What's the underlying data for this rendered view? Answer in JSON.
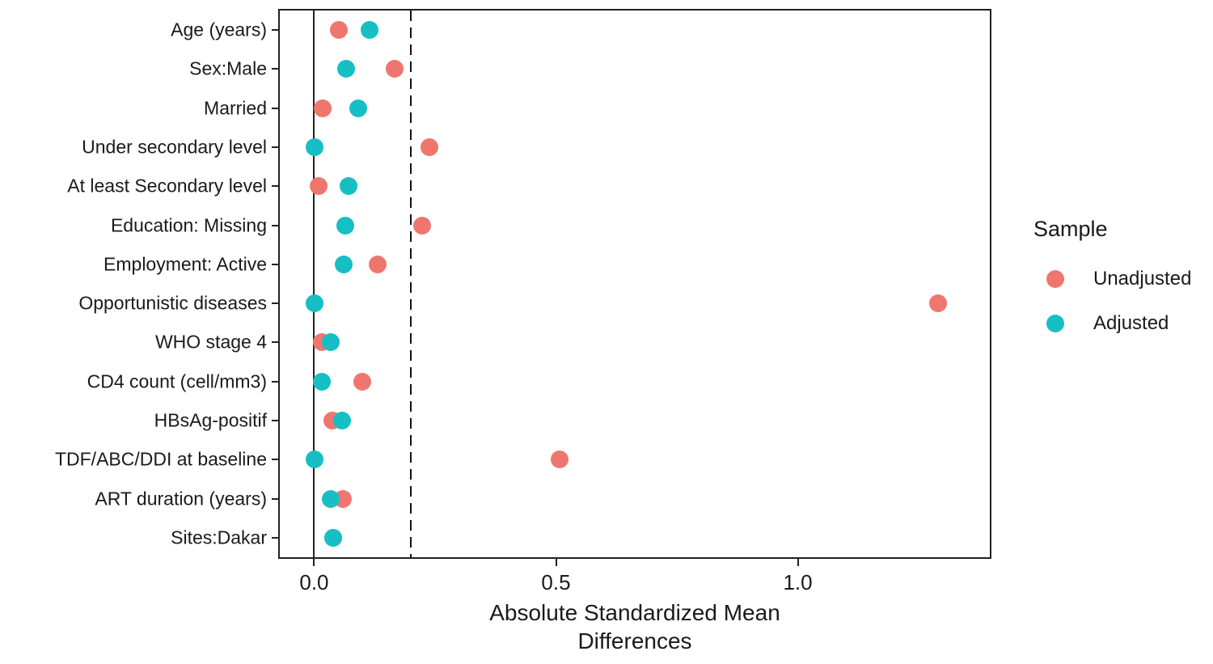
{
  "chart_data": {
    "type": "scatter",
    "subtype": "love-plot-covariate-balance",
    "title": "",
    "xlabel_line1": "Absolute Standardized Mean",
    "xlabel_line2": "Differences",
    "categories": [
      "Age (years)",
      "Sex:Male",
      "Married",
      "Under secondary level",
      "At least Secondary level",
      "Education: Missing",
      "Employment: Active",
      "Opportunistic diseases",
      "WHO stage 4",
      "CD4 count (cell/mm3)",
      "HBsAg-positif",
      "TDF/ABC/DDI at baseline",
      "ART duration (years)",
      "Sites:Dakar"
    ],
    "series": [
      {
        "name": "Unadjusted",
        "color": "#EF766F",
        "values": [
          0.051,
          0.166,
          0.018,
          0.238,
          0.01,
          0.224,
          0.132,
          1.29,
          0.016,
          0.099,
          0.037,
          0.507,
          0.06,
          0.04
        ]
      },
      {
        "name": "Adjusted",
        "color": "#16BFC3",
        "values": [
          0.114,
          0.066,
          0.092,
          0.001,
          0.071,
          0.065,
          0.061,
          0.001,
          0.034,
          0.016,
          0.058,
          0.001,
          0.035,
          0.04
        ]
      }
    ],
    "x_ticks": [
      {
        "value": 0.0,
        "label": "0.0"
      },
      {
        "value": 0.5,
        "label": "0.5"
      },
      {
        "value": 1.0,
        "label": "1.0"
      }
    ],
    "xlim": [
      -0.071,
      1.397
    ],
    "reference_lines": [
      {
        "value": 0.0,
        "style": "solid"
      },
      {
        "value": 0.2,
        "style": "dashed"
      }
    ],
    "grid": "off",
    "legend_position": "right",
    "panel_border_color": "#222222",
    "background_color": "#FFFFFF"
  },
  "legend": {
    "title": "Sample",
    "items": [
      {
        "label": "Unadjusted",
        "color": "#EF766F"
      },
      {
        "label": "Adjusted",
        "color": "#16BFC3"
      }
    ]
  }
}
